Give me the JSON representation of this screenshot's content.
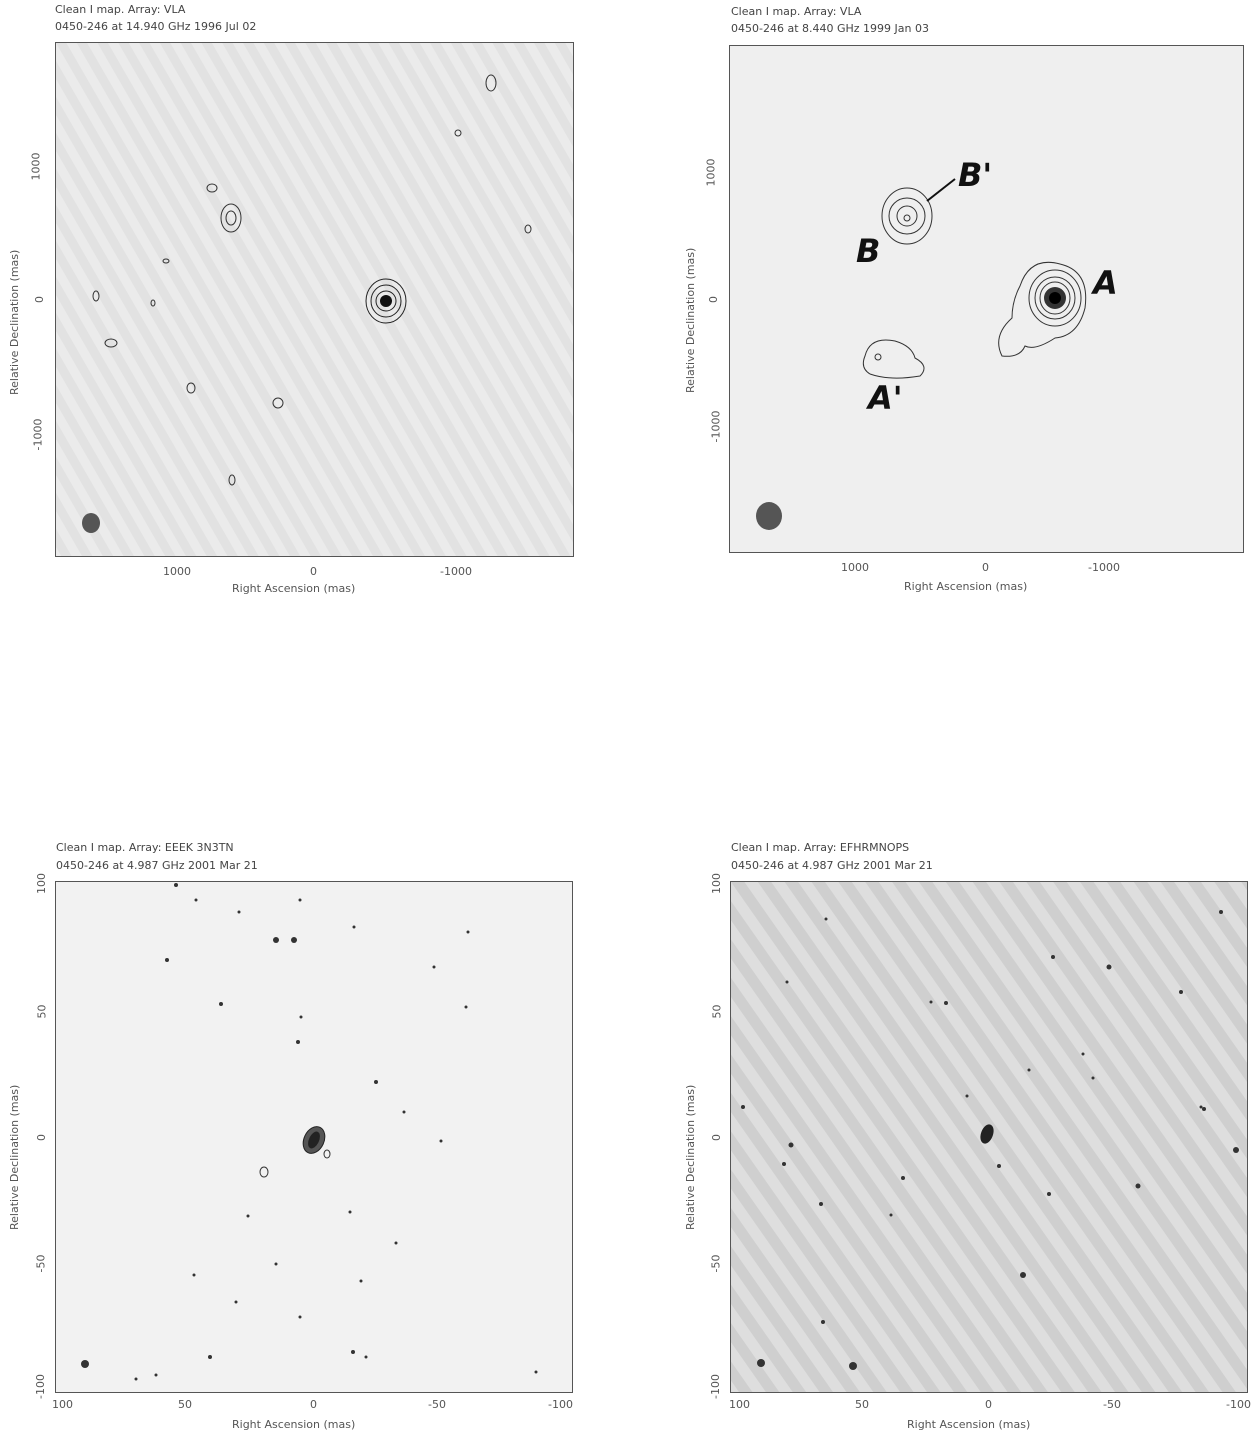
{
  "panels": [
    {
      "header1": "Clean I map. Array: VLA",
      "header2": "0450-246 at 14.940 GHz 1996 Jul 02",
      "xlabel": "Right Ascension (mas)",
      "ylabel": "Relative Declination (mas)",
      "xticks": [
        "1000",
        "0",
        "-1000"
      ],
      "yticks": [
        "1000",
        "0",
        "-1000"
      ]
    },
    {
      "header1": "Clean I map. Array: VLA",
      "header2": "0450-246 at 8.440 GHz 1999 Jan 03",
      "xlabel": "Right Ascension (mas)",
      "ylabel": "Relative Declination (mas)",
      "xticks": [
        "1000",
        "0",
        "-1000"
      ],
      "yticks": [
        "1000",
        "0",
        "-1000"
      ],
      "labels": [
        "B'",
        "B",
        "A",
        "A'"
      ]
    },
    {
      "header1": "Clean I map. Array: EEEK 3N3TN",
      "header2": "0450-246 at 4.987 GHz 2001 Mar 21",
      "xlabel": "Right Ascension (mas)",
      "ylabel": "Relative Declination (mas)",
      "xticks": [
        "100",
        "50",
        "0",
        "-50",
        "-100"
      ],
      "yticks": [
        "100",
        "50",
        "0",
        "-50",
        "-100"
      ]
    },
    {
      "header1": "Clean I map. Array: EFHRMNOPS",
      "header2": "0450-246 at 4.987 GHz 2001 Mar 21",
      "xlabel": "Right Ascension (mas)",
      "ylabel": "Relative Declination (mas)",
      "xticks": [
        "100",
        "50",
        "0",
        "-50",
        "-100"
      ],
      "yticks": [
        "100",
        "50",
        "0",
        "-50",
        "-100"
      ]
    }
  ]
}
